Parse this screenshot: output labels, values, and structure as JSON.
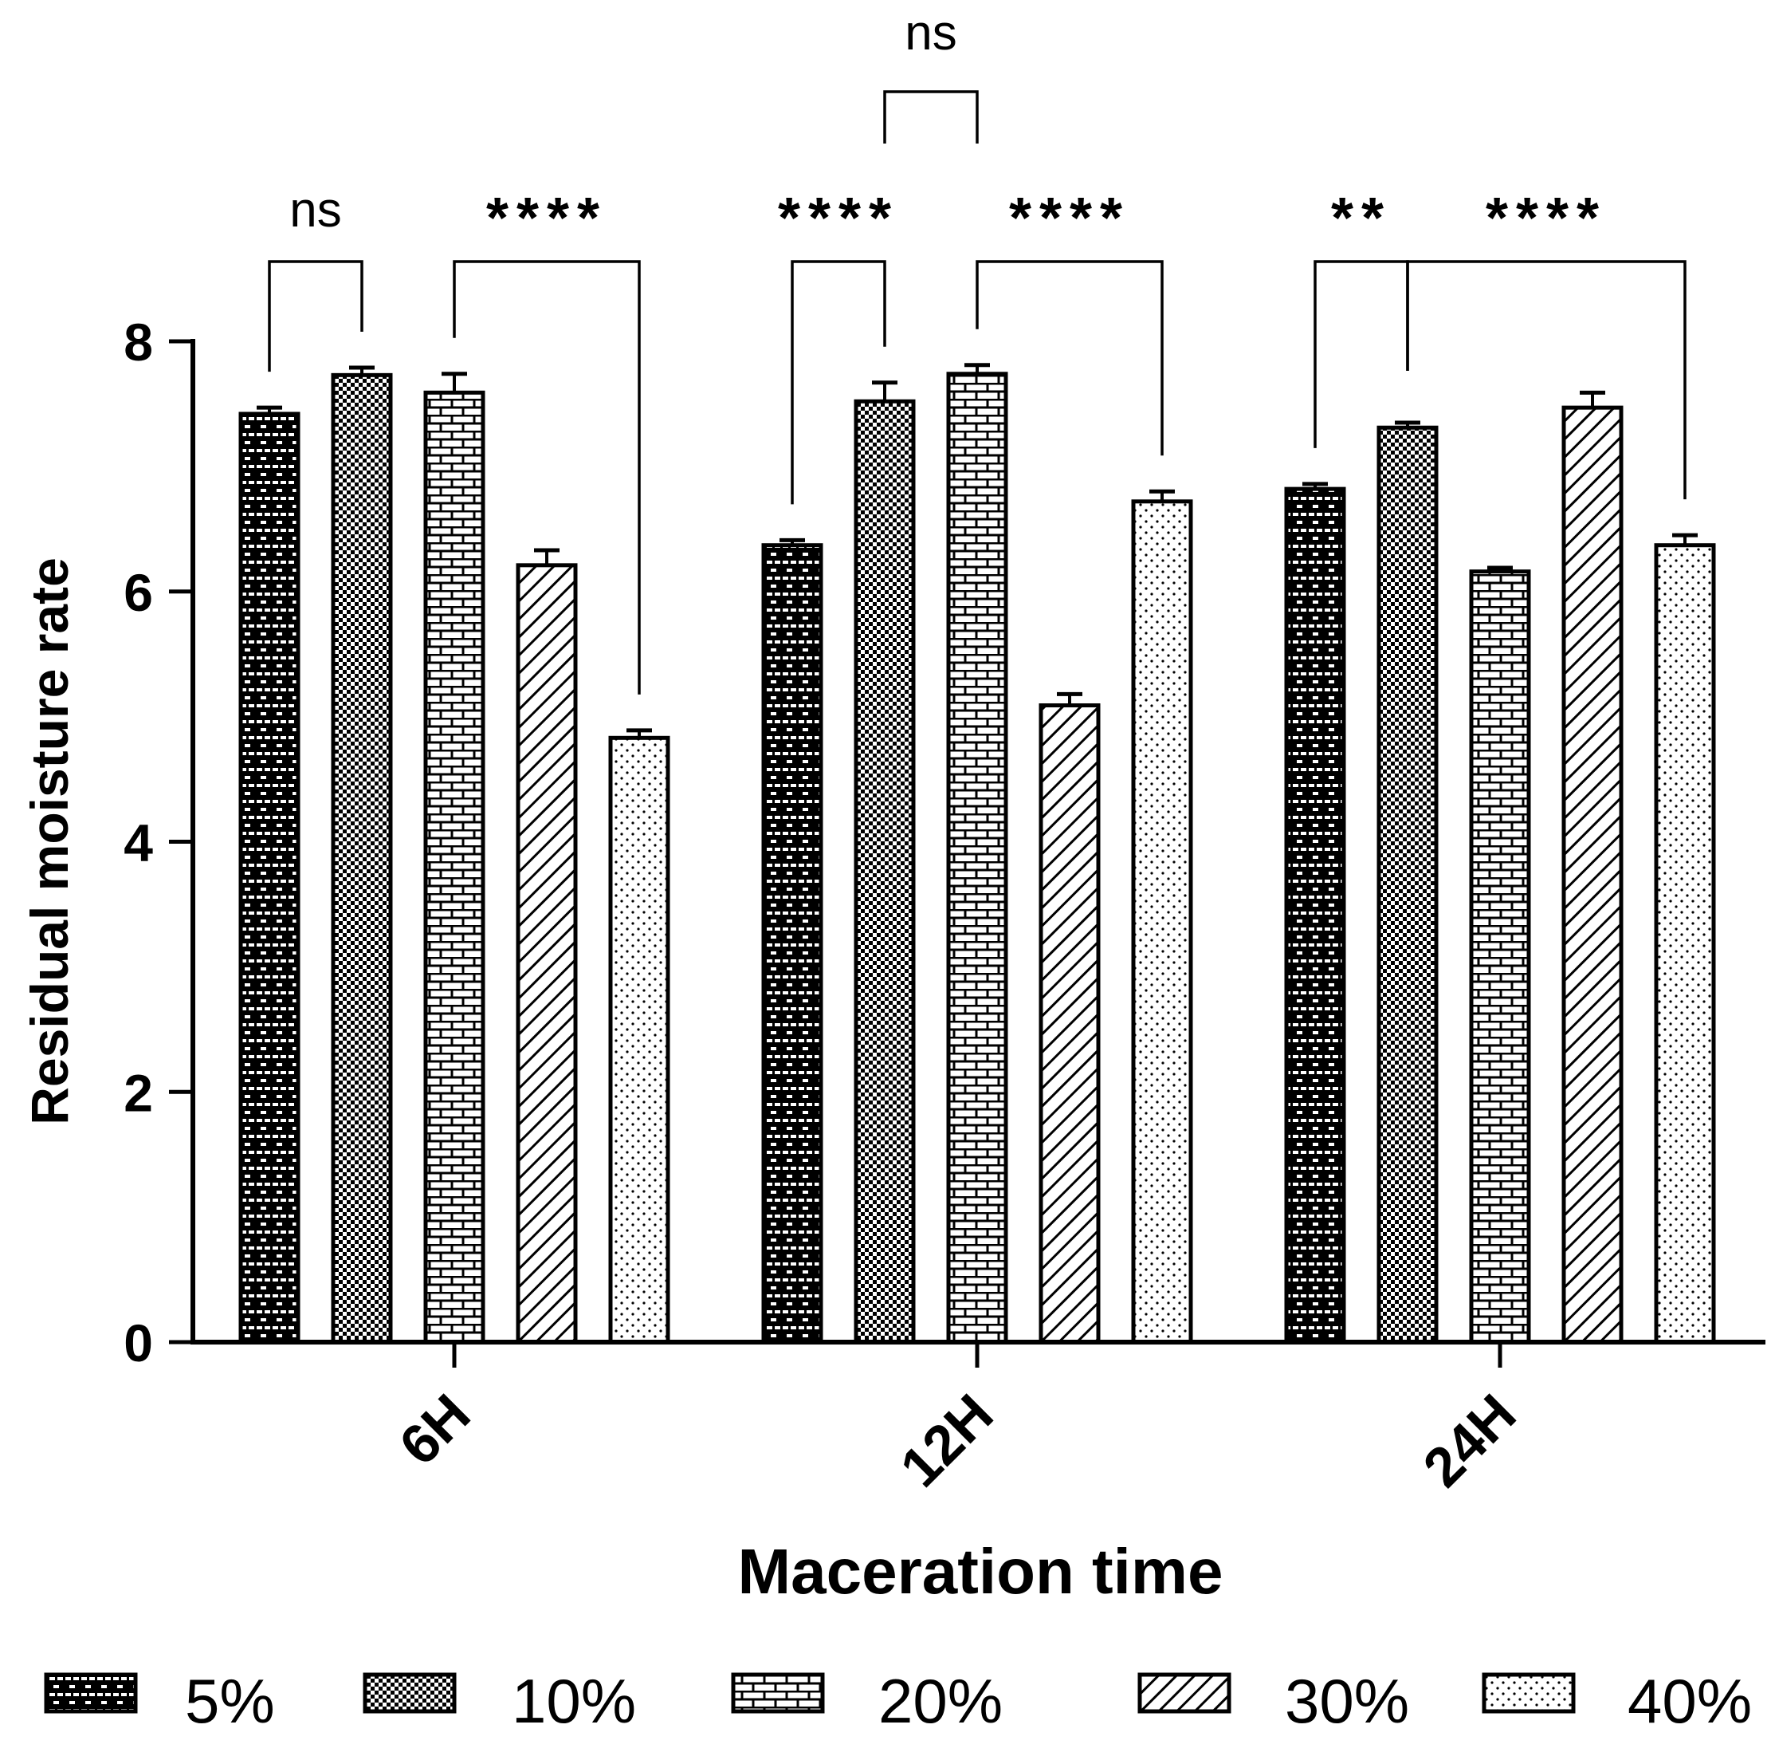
{
  "chart_data": {
    "type": "bar",
    "xlabel": "Maceration time",
    "ylabel": "Residual moisture rate",
    "ylim": [
      0,
      8
    ],
    "yticks": [
      0,
      2,
      4,
      6,
      8
    ],
    "categories": [
      "6H",
      "12H",
      "24H"
    ],
    "series": [
      {
        "name": "5%",
        "pattern": "dashed-brick",
        "values": [
          7.42,
          6.37,
          6.82
        ],
        "errors": [
          0.05,
          0.04,
          0.04
        ]
      },
      {
        "name": "10%",
        "pattern": "checker",
        "values": [
          7.73,
          7.52,
          7.31
        ],
        "errors": [
          0.06,
          0.15,
          0.04
        ]
      },
      {
        "name": "20%",
        "pattern": "brick",
        "values": [
          7.59,
          7.74,
          6.16
        ],
        "errors": [
          0.15,
          0.07,
          0.03
        ]
      },
      {
        "name": "30%",
        "pattern": "diagonal",
        "values": [
          6.21,
          5.09,
          7.47
        ],
        "errors": [
          0.12,
          0.09,
          0.12
        ]
      },
      {
        "name": "40%",
        "pattern": "dots",
        "values": [
          4.83,
          6.72,
          6.37
        ],
        "errors": [
          0.06,
          0.08,
          0.08
        ]
      }
    ],
    "comparisons": [
      {
        "category": 0,
        "from": 0,
        "to": 1,
        "label": "ns"
      },
      {
        "category": 0,
        "from": 2,
        "to": 4,
        "label": "****"
      },
      {
        "category": 1,
        "from": 0,
        "to": 1,
        "label": "****"
      },
      {
        "category": 1,
        "from": 2,
        "to": 4,
        "label": "****"
      },
      {
        "category": 1,
        "from": 1,
        "to": 2,
        "label": "ns"
      },
      {
        "category": 2,
        "from": 0,
        "to": 1,
        "label": "**"
      },
      {
        "category": 2,
        "from": 1,
        "to": 4,
        "label": "****"
      }
    ],
    "legend_position": "bottom"
  }
}
